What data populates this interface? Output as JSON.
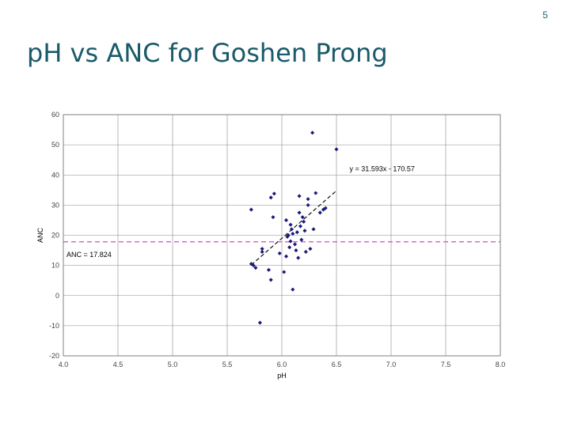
{
  "slide": {
    "number": "5",
    "title": "pH vs ANC for Goshen Prong"
  },
  "chart_data": {
    "type": "scatter",
    "title": "",
    "xlabel": "pH",
    "ylabel": "ANC",
    "xlim": [
      4.0,
      8.0
    ],
    "ylim": [
      -20,
      60
    ],
    "xticks": [
      4.0,
      4.5,
      5.0,
      5.5,
      6.0,
      6.5,
      7.0,
      7.5,
      8.0
    ],
    "xtick_labels": [
      "4.0",
      "4.5",
      "5.0",
      "5.5",
      "6.0",
      "6.5",
      "7.0",
      "7.5",
      "8.0"
    ],
    "yticks": [
      -20,
      -10,
      0,
      10,
      20,
      30,
      40,
      50,
      60
    ],
    "ytick_labels": [
      "-20",
      "-10",
      "0",
      "10",
      "20",
      "30",
      "40",
      "50",
      "60"
    ],
    "grid": true,
    "marker_color": "#1a1a7a",
    "series": [
      {
        "points": [
          [
            5.72,
            28.5
          ],
          [
            5.72,
            10.5
          ],
          [
            5.74,
            10.0
          ],
          [
            5.76,
            9.2
          ],
          [
            5.8,
            -9.0
          ],
          [
            5.82,
            15.5
          ],
          [
            5.82,
            14.5
          ],
          [
            5.88,
            8.5
          ],
          [
            5.9,
            5.2
          ],
          [
            5.9,
            32.5
          ],
          [
            5.92,
            26.0
          ],
          [
            5.93,
            33.8
          ],
          [
            5.98,
            14.0
          ],
          [
            6.02,
            7.8
          ],
          [
            6.04,
            25.0
          ],
          [
            6.04,
            13.0
          ],
          [
            6.05,
            19.5
          ],
          [
            6.06,
            20.0
          ],
          [
            6.07,
            16.0
          ],
          [
            6.08,
            23.5
          ],
          [
            6.08,
            18.0
          ],
          [
            6.09,
            22.0
          ],
          [
            6.1,
            2.0
          ],
          [
            6.1,
            20.5
          ],
          [
            6.12,
            17.0
          ],
          [
            6.13,
            15.0
          ],
          [
            6.14,
            21.0
          ],
          [
            6.15,
            12.5
          ],
          [
            6.16,
            27.5
          ],
          [
            6.16,
            33.0
          ],
          [
            6.17,
            23.0
          ],
          [
            6.18,
            18.5
          ],
          [
            6.19,
            26.0
          ],
          [
            6.2,
            24.5
          ],
          [
            6.21,
            21.5
          ],
          [
            6.22,
            14.5
          ],
          [
            6.24,
            30.0
          ],
          [
            6.24,
            32.0
          ],
          [
            6.26,
            15.5
          ],
          [
            6.28,
            54.0
          ],
          [
            6.29,
            22.0
          ],
          [
            6.31,
            34.0
          ],
          [
            6.35,
            27.5
          ],
          [
            6.38,
            28.5
          ],
          [
            6.4,
            29.0
          ],
          [
            6.5,
            48.5
          ]
        ]
      }
    ],
    "trendline": {
      "equation": "y = 31.593x - 170.57",
      "slope": 31.593,
      "intercept": -170.57,
      "x_range": [
        5.72,
        6.5
      ],
      "color": "#000000"
    },
    "reference_line": {
      "label": "ANC = 17.824",
      "y": 17.824,
      "color": "#cc33cc"
    }
  }
}
